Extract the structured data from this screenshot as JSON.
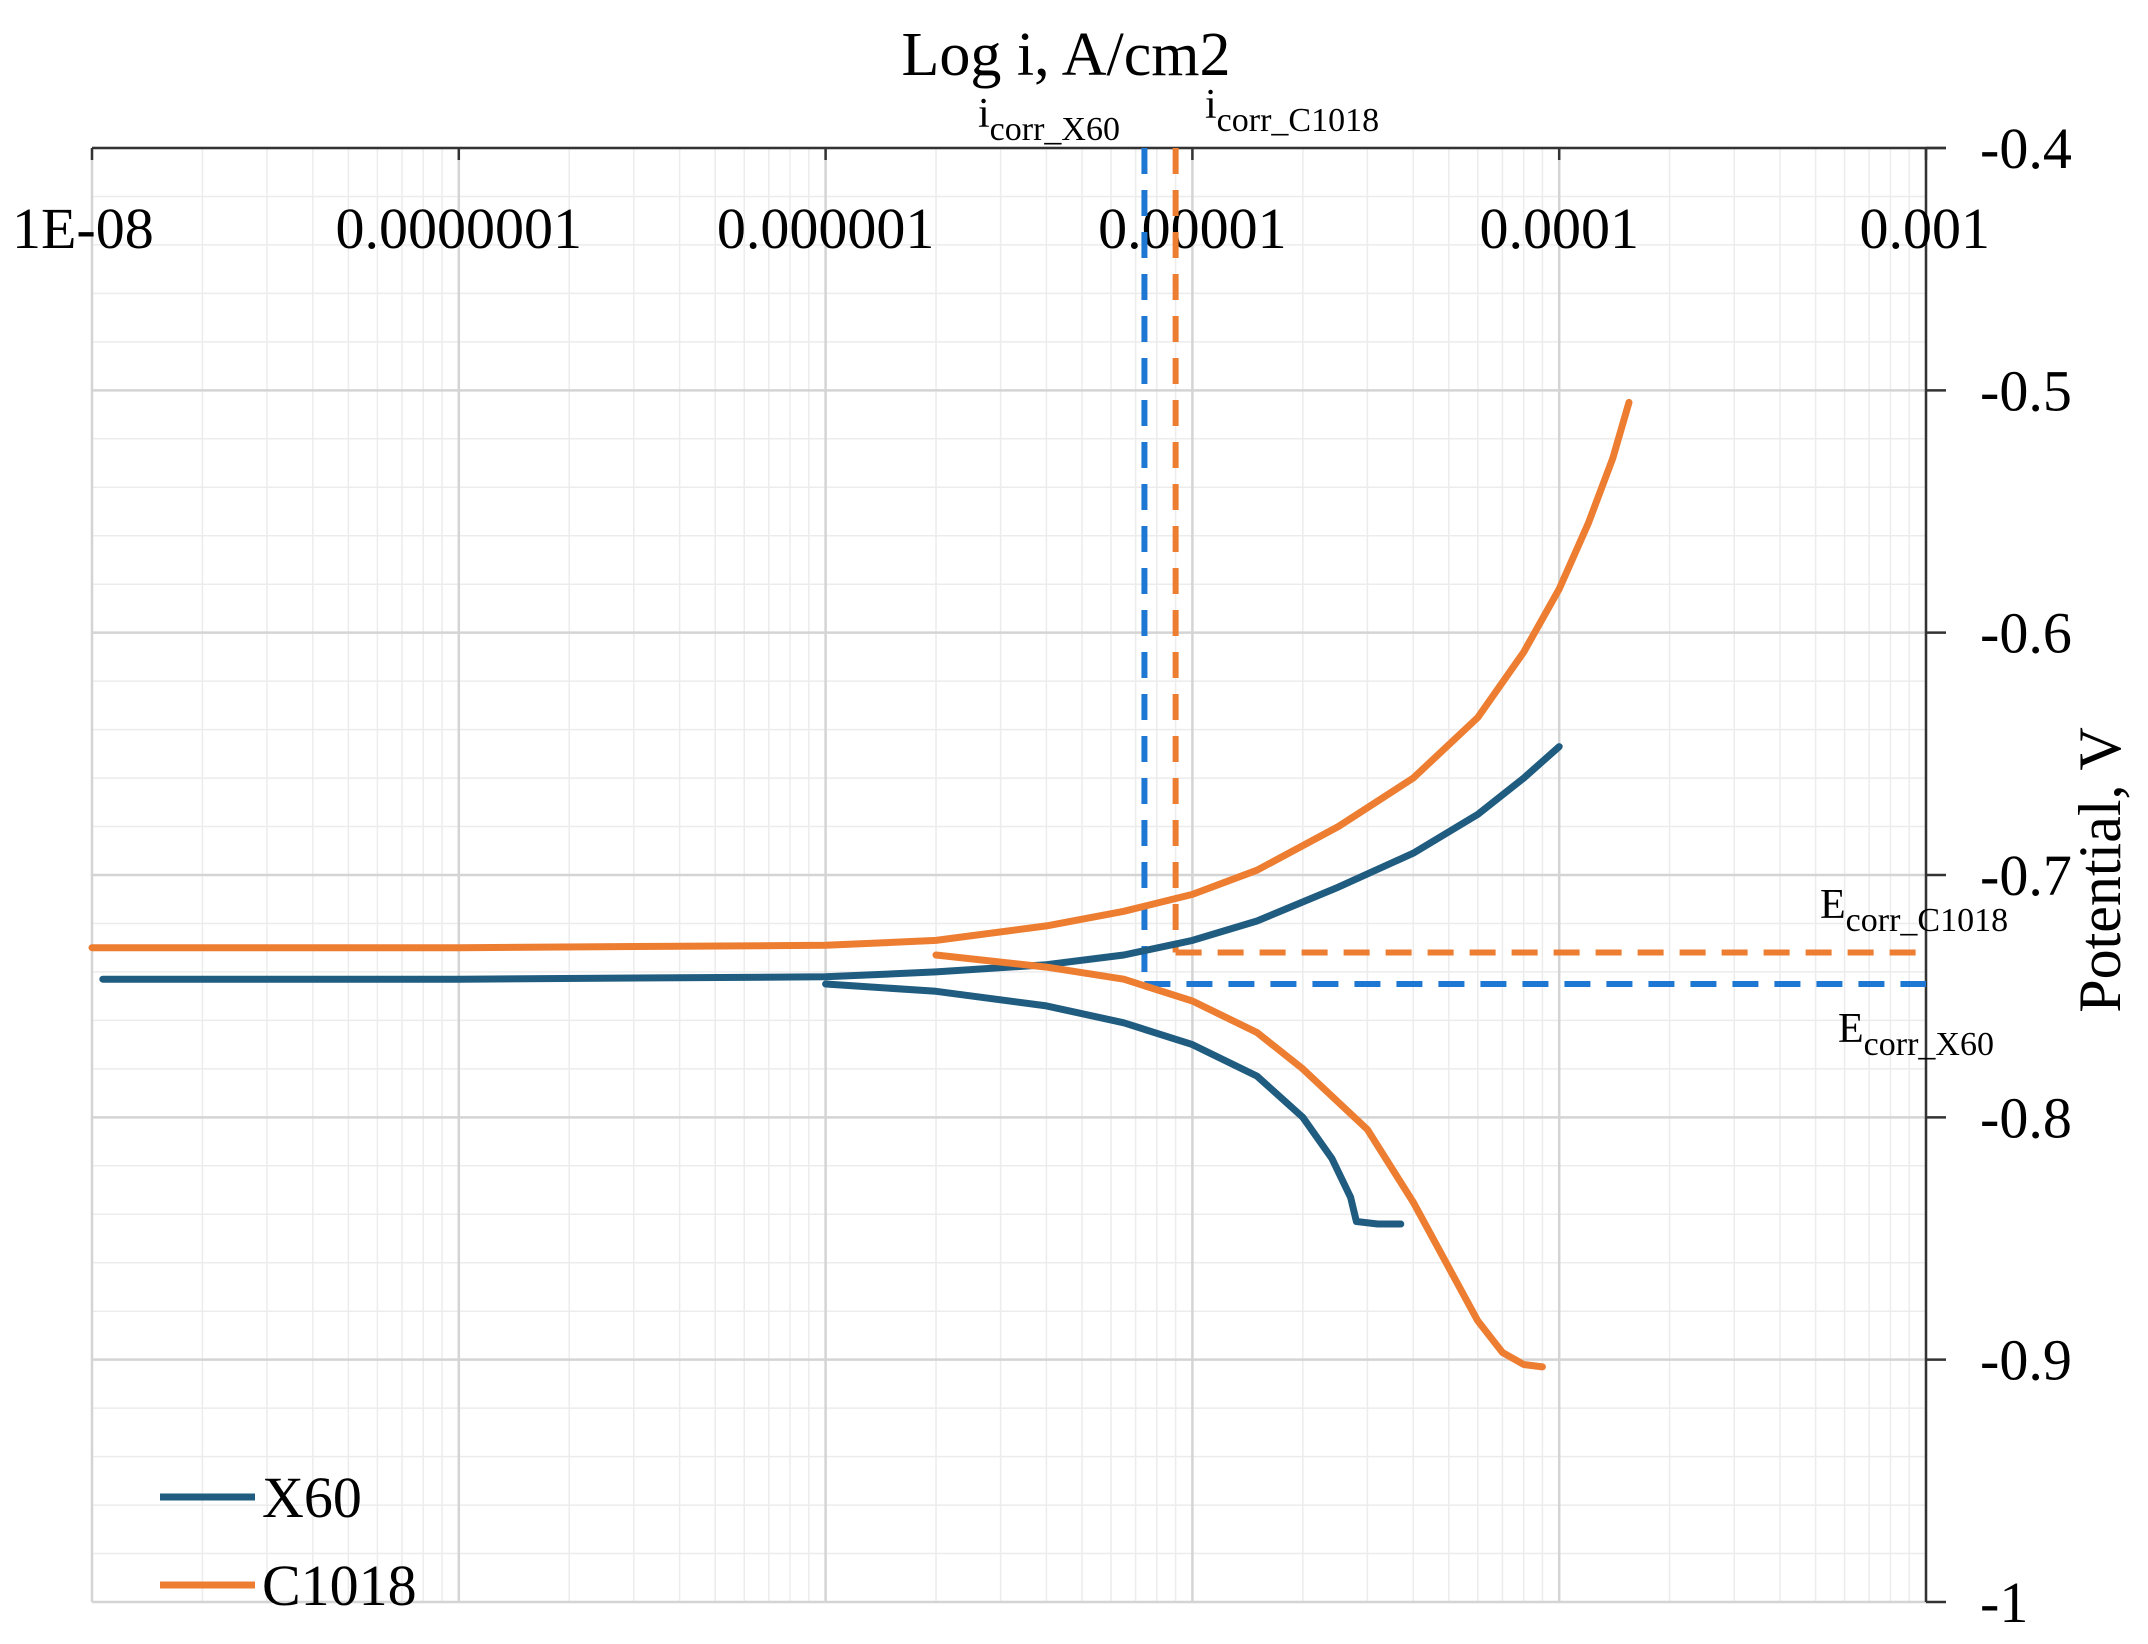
{
  "chart_data": {
    "type": "line",
    "title": "",
    "xlabel": "Log i, A/cm2",
    "ylabel": "Potential, V",
    "xscale": "log",
    "xlim": [
      1e-08,
      0.001
    ],
    "ylim": [
      -1.0,
      -0.4
    ],
    "x_ticks": [
      1e-08,
      1e-07,
      1e-06,
      1e-05,
      0.0001,
      0.001
    ],
    "x_tick_labels": [
      "1E-08",
      "0.0000001",
      "0.000001",
      "0.00001",
      "0.0001",
      "0.001"
    ],
    "y_ticks": [
      -1.0,
      -0.9,
      -0.8,
      -0.7,
      -0.6,
      -0.5,
      -0.4
    ],
    "y_tick_labels": [
      "-1",
      "-0.9",
      "-0.8",
      "-0.7",
      "-0.6",
      "-0.5",
      "-0.4"
    ],
    "grid": true,
    "legend_position": "bottom-left",
    "series": [
      {
        "name": "X60",
        "color": "#1f5c80",
        "anodic": {
          "i": [
            1.07e-08,
            1e-07,
            1e-06,
            2e-06,
            4e-06,
            6.5e-06,
            1e-05,
            1.5e-05,
            2.5e-05,
            4e-05,
            6e-05,
            8e-05,
            0.0001
          ],
          "E": [
            -0.743,
            -0.743,
            -0.742,
            -0.74,
            -0.737,
            -0.733,
            -0.727,
            -0.719,
            -0.705,
            -0.691,
            -0.675,
            -0.66,
            -0.647
          ]
        },
        "cathodic": {
          "i": [
            1e-06,
            2e-06,
            4e-06,
            6.5e-06,
            1e-05,
            1.5e-05,
            2e-05,
            2.4e-05,
            2.7e-05,
            2.8e-05,
            3.2e-05,
            3.7e-05
          ],
          "E": [
            -0.745,
            -0.748,
            -0.754,
            -0.761,
            -0.77,
            -0.783,
            -0.8,
            -0.817,
            -0.833,
            -0.843,
            -0.844,
            -0.844
          ]
        }
      },
      {
        "name": "C1018",
        "color": "#ed7d31",
        "anodic": {
          "i": [
            1e-08,
            1e-07,
            1e-06,
            2e-06,
            4e-06,
            6.5e-06,
            1e-05,
            1.5e-05,
            2.5e-05,
            4e-05,
            6e-05,
            8e-05,
            0.0001,
            0.00012,
            0.00014,
            0.000155
          ],
          "E": [
            -0.73,
            -0.73,
            -0.729,
            -0.727,
            -0.721,
            -0.715,
            -0.708,
            -0.698,
            -0.68,
            -0.66,
            -0.635,
            -0.608,
            -0.582,
            -0.555,
            -0.528,
            -0.505
          ]
        },
        "cathodic": {
          "i": [
            2e-06,
            4e-06,
            6.5e-06,
            1e-05,
            1.5e-05,
            2e-05,
            3e-05,
            4e-05,
            5e-05,
            6e-05,
            7e-05,
            8e-05,
            9e-05
          ],
          "E": [
            -0.733,
            -0.738,
            -0.743,
            -0.752,
            -0.765,
            -0.78,
            -0.805,
            -0.835,
            -0.862,
            -0.884,
            -0.897,
            -0.902,
            -0.903
          ]
        }
      }
    ],
    "reference_lines": [
      {
        "orientation": "vertical",
        "series": "X60",
        "x": 7.4e-06,
        "y_range": [
          -0.745,
          -0.4
        ],
        "color": "#1f77d4",
        "style": "dashed"
      },
      {
        "orientation": "vertical",
        "series": "C1018",
        "x": 9e-06,
        "y_range": [
          -0.732,
          -0.4
        ],
        "color": "#ed7d31",
        "style": "dashed"
      },
      {
        "orientation": "horizontal",
        "series": "C1018",
        "y": -0.732,
        "x_range": [
          9e-06,
          0.001
        ],
        "color": "#ed7d31",
        "style": "dashed"
      },
      {
        "orientation": "horizontal",
        "series": "X60",
        "y": -0.745,
        "x_range": [
          7.4e-06,
          0.001
        ],
        "color": "#1f77d4",
        "style": "dashed"
      }
    ],
    "annotations": {
      "icorr_x60": {
        "main": "i",
        "sub": "corr_X60"
      },
      "icorr_c1018": {
        "main": "i",
        "sub": "corr_C1018"
      },
      "ecorr_c1018": {
        "main": "E",
        "sub": "corr_C1018"
      },
      "ecorr_x60": {
        "main": "E",
        "sub": "corr_X60"
      }
    }
  }
}
